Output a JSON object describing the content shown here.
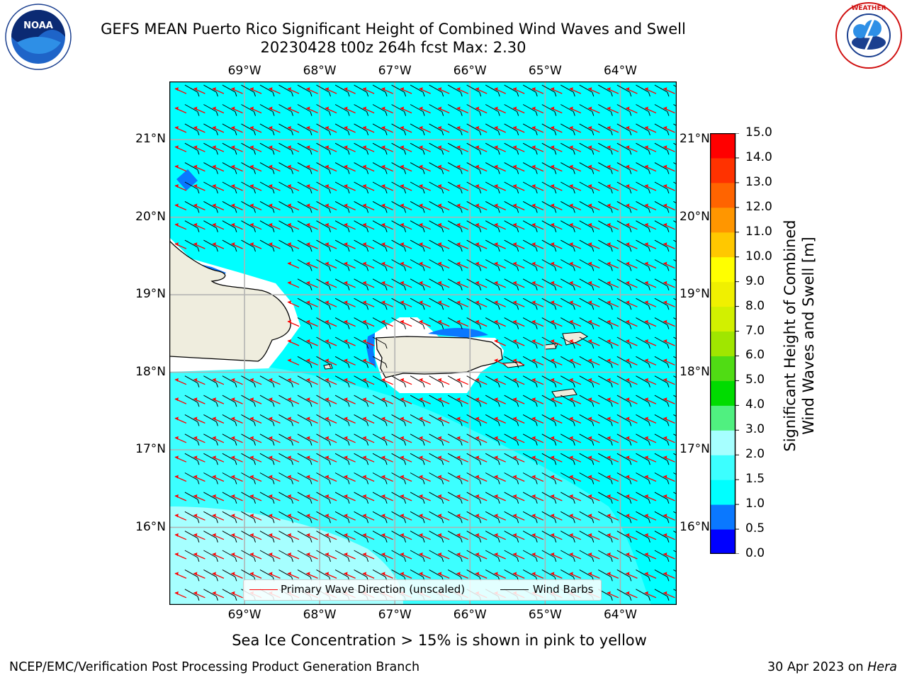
{
  "title_line1": "GEFS MEAN Puerto Rico Significant Height of Combined Wind Waves and Swell",
  "title_line2": "20230428 t00z 264h fcst   Max: 2.30",
  "subtitle": "Sea Ice Concentration > 15% is shown in pink to yellow",
  "footer_left": "NCEP/EMC/Verification Post Processing Product Generation Branch",
  "footer_right_date": "30 Apr 2023 on ",
  "footer_right_host": "Hera",
  "logos": {
    "left": "NOAA",
    "right": "NATIONAL WEATHER SERVICE"
  },
  "chart_data": {
    "type": "heatmap",
    "map_extent": {
      "lon": [
        -70.0,
        -63.25
      ],
      "lat": [
        15.0,
        21.75
      ]
    },
    "lon_ticks": [
      "69°W",
      "68°W",
      "67°W",
      "66°W",
      "65°W",
      "64°W"
    ],
    "lat_ticks": [
      "21°N",
      "20°N",
      "19°N",
      "18°N",
      "17°N",
      "16°N"
    ],
    "max_value": 2.3,
    "colorbar": {
      "label": "Significant Height of Combined\nWind Waves and Swell [m]",
      "ticks": [
        "15.0",
        "14.0",
        "13.0",
        "12.0",
        "11.0",
        "10.0",
        "9.0",
        "8.0",
        "7.0",
        "6.0",
        "5.0",
        "4.0",
        "3.0",
        "2.0",
        "1.5",
        "1.0",
        "0.5",
        "0.0"
      ],
      "bins": [
        {
          "lo": 0.0,
          "hi": 0.5,
          "color": "#0000ff"
        },
        {
          "lo": 0.5,
          "hi": 1.0,
          "color": "#0a78ff"
        },
        {
          "lo": 1.0,
          "hi": 1.5,
          "color": "#00ffff"
        },
        {
          "lo": 1.5,
          "hi": 2.0,
          "color": "#3cffff"
        },
        {
          "lo": 2.0,
          "hi": 3.0,
          "color": "#a6ffff"
        },
        {
          "lo": 3.0,
          "hi": 4.0,
          "color": "#50f080"
        },
        {
          "lo": 4.0,
          "hi": 5.0,
          "color": "#00dc00"
        },
        {
          "lo": 5.0,
          "hi": 6.0,
          "color": "#50dc14"
        },
        {
          "lo": 6.0,
          "hi": 7.0,
          "color": "#a0e600"
        },
        {
          "lo": 7.0,
          "hi": 8.0,
          "color": "#d2f000"
        },
        {
          "lo": 8.0,
          "hi": 9.0,
          "color": "#f0f000"
        },
        {
          "lo": 9.0,
          "hi": 10.0,
          "color": "#ffff00"
        },
        {
          "lo": 10.0,
          "hi": 11.0,
          "color": "#ffc800"
        },
        {
          "lo": 11.0,
          "hi": 12.0,
          "color": "#ff9600"
        },
        {
          "lo": 12.0,
          "hi": 13.0,
          "color": "#ff6400"
        },
        {
          "lo": 13.0,
          "hi": 14.0,
          "color": "#ff3200"
        },
        {
          "lo": 14.0,
          "hi": 15.0,
          "color": "#ff0000"
        }
      ]
    },
    "colors": {
      "ocean_main": "#00ffff",
      "ocean_mid": "#3cffff",
      "ocean_high": "#a6ffff",
      "land": "#efedde",
      "low_wave": "#0a78ff",
      "wave_arrow": "#ff0000",
      "wind_barb": "#000000",
      "grid": "#b0b0b0"
    },
    "legend": {
      "items": [
        "Primary Wave Direction (unscaled)",
        "Wind Barbs"
      ],
      "placement": "lower-center"
    },
    "vector_field": {
      "wave_direction": "toward west-northwest",
      "wind_direction": "from east",
      "grid_spacing_deg": 0.25
    }
  }
}
